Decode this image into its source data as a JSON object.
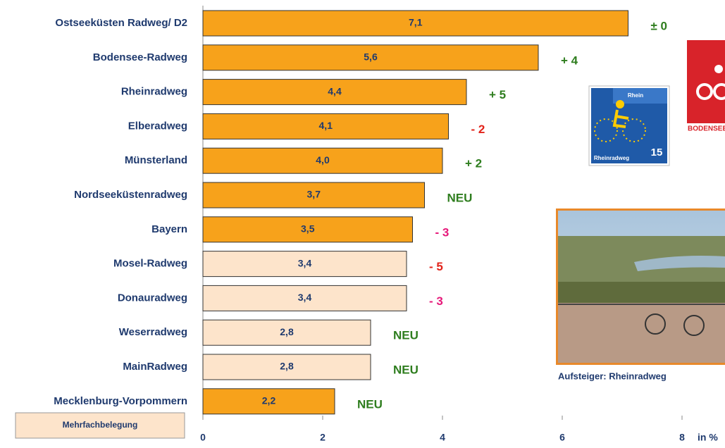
{
  "chart_data": {
    "type": "bar",
    "categories": [
      "Ostseeküsten Radweg/ D2",
      "Bodensee-Radweg",
      "Rheinradweg",
      "Elberadweg",
      "Münsterland",
      "Nordseeküstenradweg",
      "Bayern",
      "Mosel-Radweg",
      "Donauradweg",
      "Weserradweg",
      "MainRadweg",
      "Mecklenburg-Vorpommern"
    ],
    "values": [
      7.1,
      5.6,
      4.4,
      4.1,
      4.0,
      3.7,
      3.5,
      3.4,
      3.4,
      2.8,
      2.8,
      2.2
    ],
    "value_labels": [
      "7,1",
      "5,6",
      "4,4",
      "4,1",
      "4,0",
      "3,7",
      "3,5",
      "3,4",
      "3,4",
      "2,8",
      "2,8",
      "2,2"
    ],
    "bar_colors": [
      "#f7a21b",
      "#f7a21b",
      "#f7a21b",
      "#f7a21b",
      "#f7a21b",
      "#f7a21b",
      "#f7a21b",
      "#fde4cb",
      "#fde4cb",
      "#fde4cb",
      "#fde4cb",
      "#f7a21b"
    ],
    "changes": [
      "± 0",
      "+ 4",
      "+ 5",
      "- 2",
      "+ 2",
      "NEU",
      "- 3",
      "- 5",
      "- 3",
      "NEU",
      "NEU",
      "NEU"
    ],
    "change_colors": [
      "#2e7d1e",
      "#2e7d1e",
      "#2e7d1e",
      "#e2231a",
      "#2e7d1e",
      "#2e7d1e",
      "#e6197a",
      "#e2231a",
      "#e6197a",
      "#2e7d1e",
      "#2e7d1e",
      "#2e7d1e"
    ],
    "legend": {
      "label": "Mehrfachbelegung",
      "color": "#fde4cb"
    },
    "xlim": [
      0,
      8
    ],
    "xticks": [
      0,
      2,
      4,
      6,
      8
    ],
    "x_label": "in %",
    "photo_caption": "Aufsteiger: Rheinradweg",
    "logo_rheinradweg": {
      "top": "Rhein",
      "name": "Rheinradweg",
      "number": "15"
    },
    "logo_bodensee": "BODENSEE"
  }
}
